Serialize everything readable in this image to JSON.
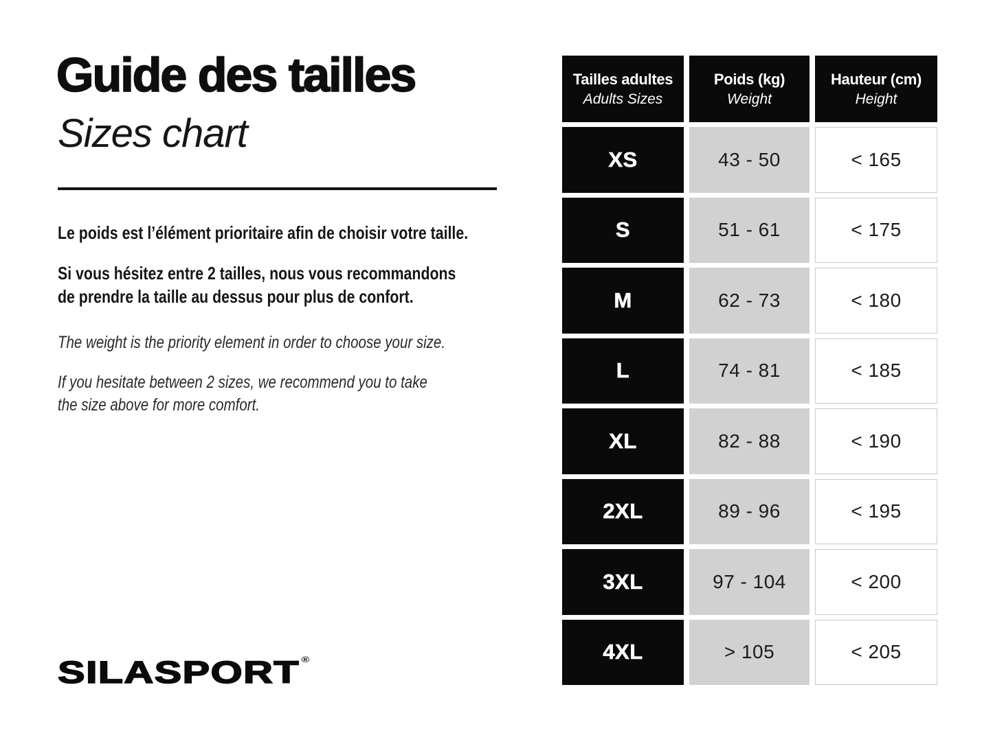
{
  "page": {
    "title_fr": "Guide des tailles",
    "title_en": "Sizes chart",
    "logo_text": "SILASPORT",
    "logo_reg": "®"
  },
  "intro": {
    "fr_line_1": "Le poids est l’élément prioritaire afin de choisir votre taille.",
    "fr_line_2a": "Si vous hésitez entre 2 tailles, nous vous recommandons",
    "fr_line_2b": "de prendre la taille au dessus pour plus de confort.",
    "en_line_1": "The weight is the priority element in order to choose your size.",
    "en_line_2a": "If you hesitate between 2 sizes, we recommend you to take",
    "en_line_2b": "the size above for more comfort."
  },
  "table": {
    "headers": [
      {
        "fr": "Tailles adultes",
        "en": "Adults Sizes"
      },
      {
        "fr": "Poids (kg)",
        "en": "Weight"
      },
      {
        "fr": "Hauteur (cm)",
        "en": "Height"
      }
    ],
    "rows": [
      {
        "size": "XS",
        "weight": "43 - 50",
        "height": "< 165"
      },
      {
        "size": "S",
        "weight": "51 - 61",
        "height": "< 175"
      },
      {
        "size": "M",
        "weight": "62 - 73",
        "height": "< 180"
      },
      {
        "size": "L",
        "weight": "74 - 81",
        "height": "< 185"
      },
      {
        "size": "XL",
        "weight": "82 - 88",
        "height": "< 190"
      },
      {
        "size": "2XL",
        "weight": "89 - 96",
        "height": "< 195"
      },
      {
        "size": "3XL",
        "weight": "97 - 104",
        "height": "< 200"
      },
      {
        "size": "4XL",
        "weight": "> 105",
        "height": "< 205"
      }
    ]
  },
  "colors": {
    "cell_black": "#0a0a0a",
    "cell_gray": "#d1d1d1",
    "cell_white_border": "#c9c9c9",
    "text": "#111111",
    "background": "#ffffff"
  }
}
